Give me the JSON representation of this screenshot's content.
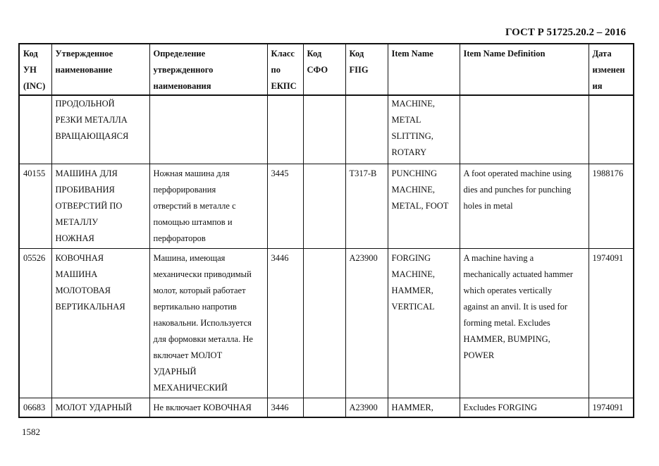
{
  "header": {
    "title": "ГОСТ Р 51725.20.2 – 2016"
  },
  "page_number": "1582",
  "table": {
    "columns": [
      [
        "Код",
        "УН",
        "(INC)"
      ],
      [
        "Утвержденное",
        "наименование"
      ],
      [
        "Определение",
        "утвержденного",
        "наименования"
      ],
      [
        "Класс",
        "по",
        "ЕКПС"
      ],
      [
        "Код",
        "СФО"
      ],
      [
        "Код",
        "FIIG"
      ],
      [
        "Item Name"
      ],
      [
        "Item Name Definition"
      ],
      [
        "Дата",
        "изменен",
        "ия"
      ]
    ],
    "rows": [
      [
        [],
        [
          "ПРОДОЛЬНОЙ",
          "РЕЗКИ МЕТАЛЛА",
          "ВРАЩАЮЩАЯСЯ"
        ],
        [],
        [],
        [],
        [],
        [
          "MACHINE,",
          "METAL",
          "SLITTING,",
          "ROTARY"
        ],
        [],
        []
      ],
      [
        [
          "40155"
        ],
        [
          "МАШИНА ДЛЯ",
          "ПРОБИВАНИЯ",
          "ОТВЕРСТИЙ ПО",
          "МЕТАЛЛУ",
          "НОЖНАЯ"
        ],
        [
          "Ножная машина для",
          "перфорирования",
          "отверстий  в металле с",
          "помощью штампов и",
          "перфораторов"
        ],
        [
          "3445"
        ],
        [],
        [
          "T317-B"
        ],
        [
          "PUNCHING",
          "MACHINE,",
          "METAL, FOOT"
        ],
        [
          "A foot operated machine using",
          "dies and punches for punching",
          "holes in metal"
        ],
        [
          "1988176"
        ]
      ],
      [
        [
          "05526"
        ],
        [
          "КОВОЧНАЯ",
          "МАШИНА",
          "МОЛОТОВАЯ",
          "ВЕРТИКАЛЬНАЯ"
        ],
        [
          "Машина, имеющая",
          "механически приводимый",
          "молот, который работает",
          "вертикально напротив",
          "наковальни. Используется",
          "для формовки металла. Не",
          "включает МОЛОТ",
          "УДАРНЫЙ",
          "МЕХАНИЧЕСКИЙ"
        ],
        [
          "3446"
        ],
        [],
        [
          "A23900"
        ],
        [
          "FORGING",
          "MACHINE,",
          "HAMMER,",
          "VERTICAL"
        ],
        [
          "A machine having a",
          "mechanically actuated hammer",
          "which operates vertically",
          "against an anvil. It is used for",
          "forming metal. Excludes",
          "HAMMER, BUMPING,",
          "POWER"
        ],
        [
          "1974091"
        ]
      ],
      [
        [
          "06683"
        ],
        [
          "МОЛОТ УДАРНЫЙ"
        ],
        [
          "Не включает КОВОЧНАЯ"
        ],
        [
          "3446"
        ],
        [],
        [
          "A23900"
        ],
        [
          "HAMMER,"
        ],
        [
          "Excludes FORGING"
        ],
        [
          "1974091"
        ]
      ]
    ]
  }
}
